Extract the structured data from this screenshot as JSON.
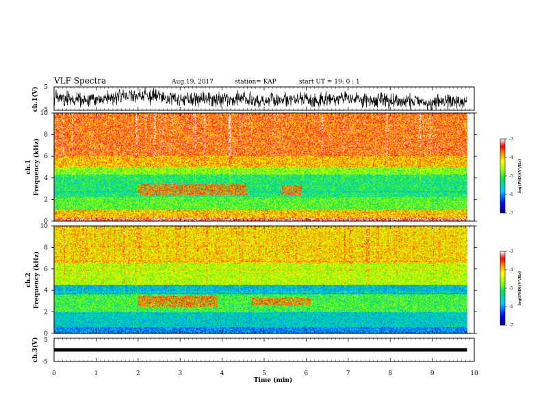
{
  "header": {
    "title": "VLF Spectra",
    "date": "Aug.19, 2017",
    "station": "station= KAP",
    "start_ut": "start  UT =   19: 0  : 1"
  },
  "chart_data": [
    {
      "type": "line",
      "name": "ch1-waveform",
      "ylabel": "ch.1(V)",
      "ylim": [
        -5,
        5
      ],
      "yticks": [
        "5",
        "-5"
      ],
      "xlim": [
        0,
        10
      ],
      "x_extent": [
        0,
        9.83
      ]
    },
    {
      "type": "heatmap",
      "name": "ch1-spectrogram",
      "ylabel_top": "ch.1",
      "ylabel": "Frequency (kHz)",
      "ylim": [
        0,
        10
      ],
      "yticks": [
        "0",
        "2",
        "4",
        "6",
        "8",
        "10"
      ],
      "xlim": [
        0,
        10
      ],
      "x_extent": [
        0,
        9.83
      ],
      "bands_khz": [
        {
          "from": 0,
          "to": 0.3,
          "level": -3.3
        },
        {
          "from": 0.3,
          "to": 1,
          "level": -4.0
        },
        {
          "from": 1,
          "to": 2.2,
          "level": -4.9
        },
        {
          "from": 2.2,
          "to": 4.3,
          "level": -5.2
        },
        {
          "from": 4.3,
          "to": 5.0,
          "level": -4.7
        },
        {
          "from": 5.0,
          "to": 6.0,
          "level": -4.0
        },
        {
          "from": 6.0,
          "to": 10,
          "level": -3.6
        }
      ],
      "bursts": [
        {
          "t0": 2.0,
          "t1": 4.6,
          "f0": 2.4,
          "f1": 3.4
        },
        {
          "t0": 5.4,
          "t1": 5.9,
          "f0": 2.4,
          "f1": 3.3
        }
      ]
    },
    {
      "type": "heatmap",
      "name": "ch2-spectrogram",
      "ylabel_top": "ch.2",
      "ylabel": "Frequency (kHz)",
      "ylim": [
        0,
        10
      ],
      "yticks": [
        "0",
        "2",
        "4",
        "6",
        "8",
        "10"
      ],
      "xlim": [
        0,
        10
      ],
      "x_extent": [
        0,
        9.83
      ],
      "bands_khz": [
        {
          "from": 0,
          "to": 0.6,
          "level": -6.0
        },
        {
          "from": 0.6,
          "to": 2.0,
          "level": -5.6
        },
        {
          "from": 2.0,
          "to": 3.6,
          "level": -5.0
        },
        {
          "from": 3.6,
          "to": 4.5,
          "level": -5.7
        },
        {
          "from": 4.5,
          "to": 6.5,
          "level": -4.5
        },
        {
          "from": 6.5,
          "to": 10,
          "level": -4.1
        }
      ],
      "bursts": [
        {
          "t0": 2.0,
          "t1": 3.9,
          "f0": 2.5,
          "f1": 3.5
        },
        {
          "t0": 4.7,
          "t1": 6.1,
          "f0": 2.6,
          "f1": 3.3
        }
      ]
    },
    {
      "type": "line",
      "name": "ch3-waveform",
      "ylabel": "ch.3(V)",
      "ylim": [
        -5,
        5
      ],
      "yticks": [
        "5",
        "-5"
      ],
      "xlim": [
        0,
        10
      ],
      "x_extent": [
        0,
        9.83
      ],
      "level": 0
    }
  ],
  "xaxis": {
    "label": "Time (min)",
    "ticks": [
      "0",
      "1",
      "2",
      "3",
      "4",
      "5",
      "6",
      "7",
      "8",
      "9",
      "10"
    ]
  },
  "colorbars": [
    {
      "name": "ch1-colorbar",
      "label": "log(PSD)(V²/Hz)",
      "range": [
        -7,
        -3
      ],
      "ticks": [
        "-3",
        "-4",
        "-5",
        "-6",
        "-7"
      ]
    },
    {
      "name": "ch2-colorbar",
      "label": "log(PSD)(V²/Hz)",
      "range": [
        -7,
        -3
      ],
      "ticks": [
        "-3",
        "-4",
        "-5",
        "-6",
        "-7"
      ]
    }
  ],
  "colors": {
    "ink": "#000000",
    "background": "#ffffff"
  }
}
